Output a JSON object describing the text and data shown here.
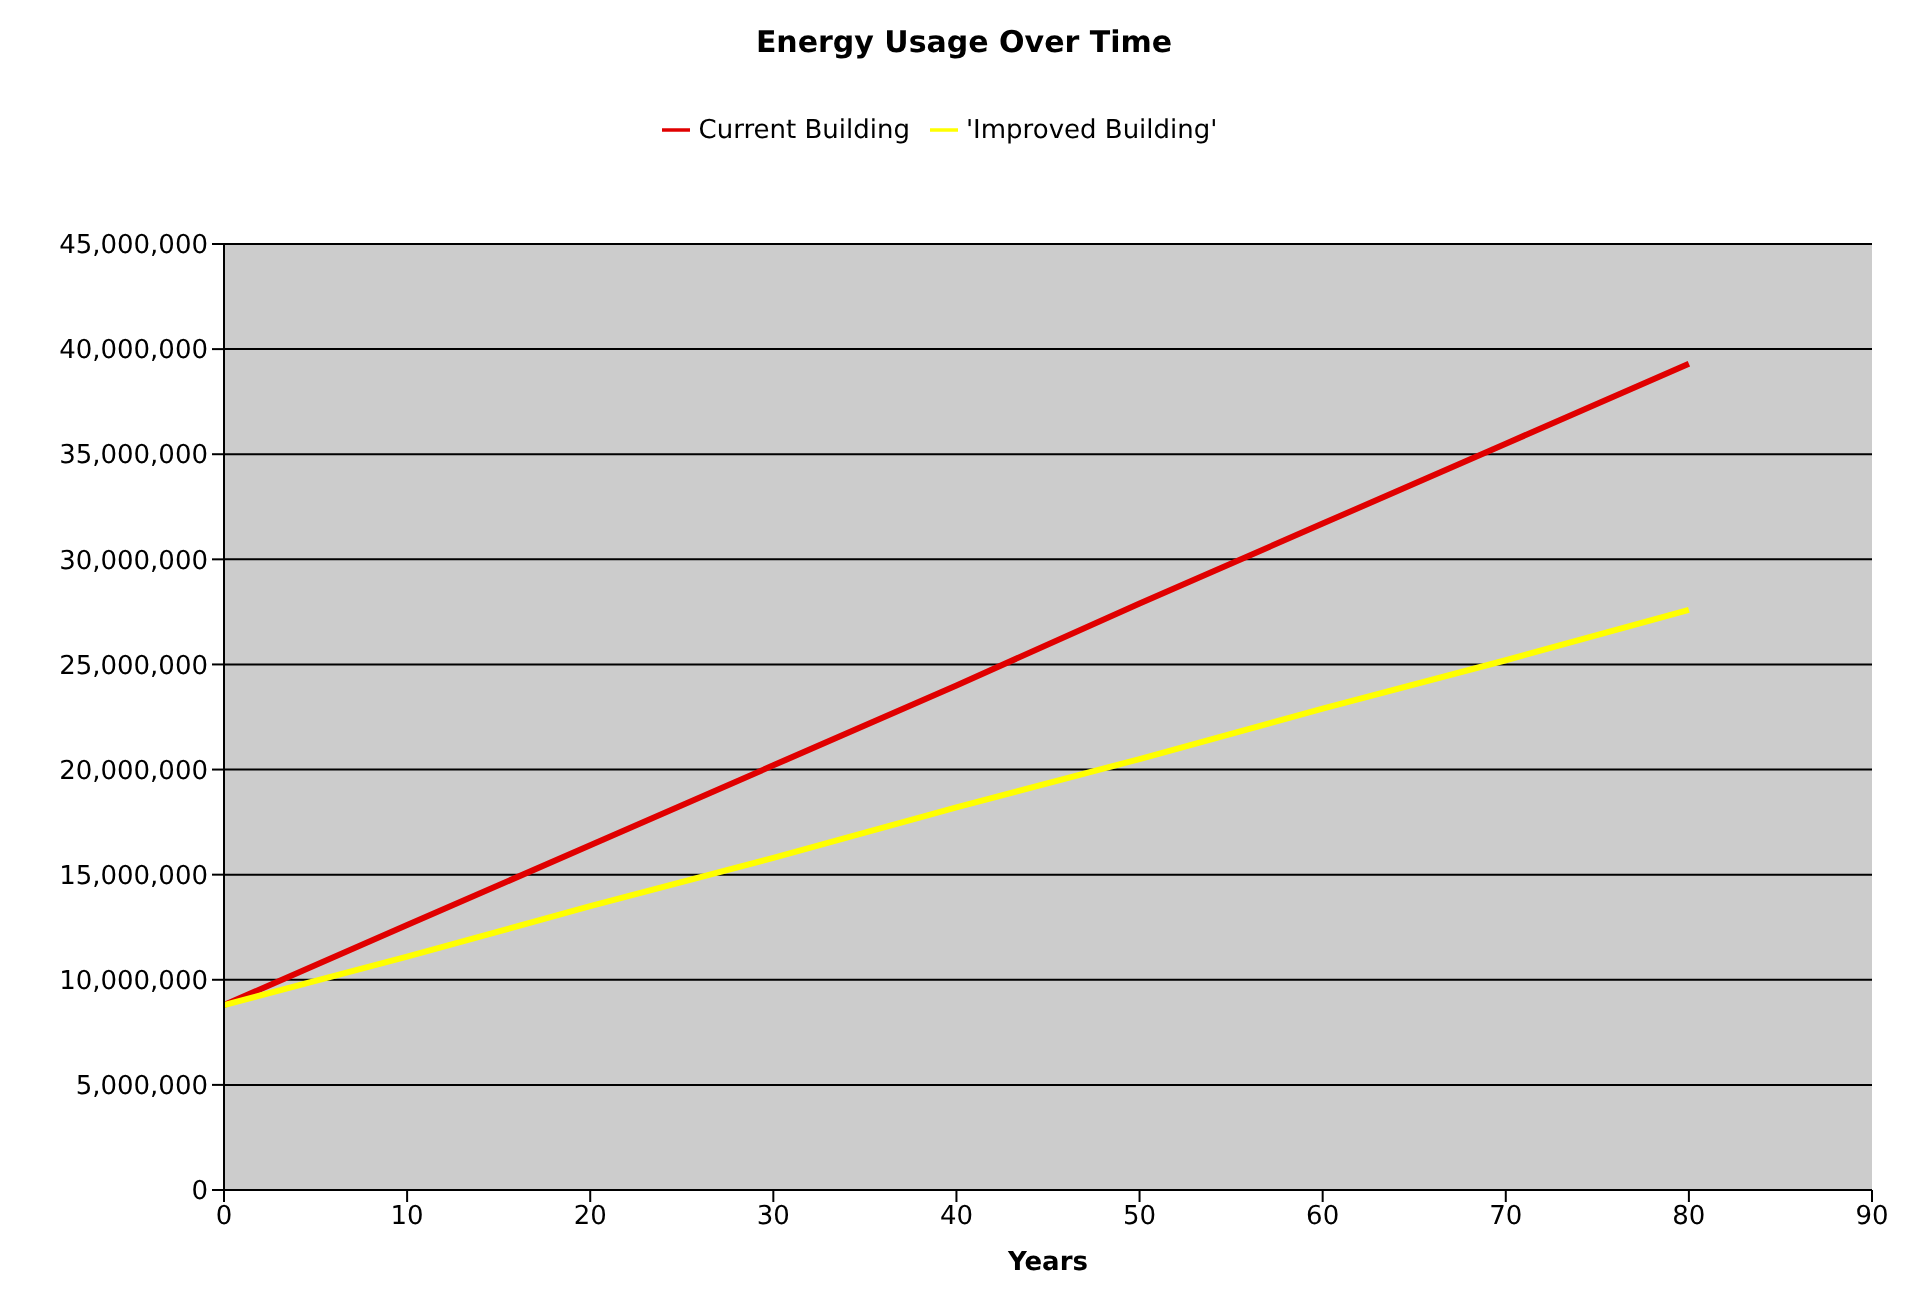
{
  "chart_data": {
    "type": "line",
    "title": "Energy Usage Over Time",
    "xlabel": "Years",
    "x": [
      0,
      10,
      20,
      30,
      40,
      50,
      60,
      70,
      80
    ],
    "series": [
      {
        "name": "Current Building",
        "color": "#e00000",
        "values": [
          8800000,
          12600000,
          16400000,
          20200000,
          24000000,
          27900000,
          31700000,
          35500000,
          39300000
        ]
      },
      {
        "name": "'Improved Building'",
        "color": "#ffff00",
        "values": [
          8800000,
          11100000,
          13500000,
          15800000,
          18200000,
          20500000,
          22900000,
          25200000,
          27600000
        ]
      }
    ],
    "xlim": [
      0,
      90
    ],
    "xticks": [
      0,
      10,
      20,
      30,
      40,
      50,
      60,
      70,
      80,
      90
    ],
    "ylim": [
      0,
      45000000
    ],
    "yticks": [
      0,
      {
        "value": 5000000,
        "label": "5,000,000"
      },
      {
        "value": 10000000,
        "label": "10,000,000"
      },
      {
        "value": 15000000,
        "label": "15,000,000"
      },
      {
        "value": 20000000,
        "label": "20,000,000"
      },
      {
        "value": 25000000,
        "label": "25,000,000"
      },
      {
        "value": 30000000,
        "label": "30,000,000"
      },
      {
        "value": 35000000,
        "label": "35,000,000"
      },
      {
        "value": 40000000,
        "label": "40,000,000"
      },
      {
        "value": 45000000,
        "label": "45,000,000"
      }
    ],
    "grid": "y",
    "legend": "top",
    "marker": "none",
    "line_style": "solid"
  }
}
